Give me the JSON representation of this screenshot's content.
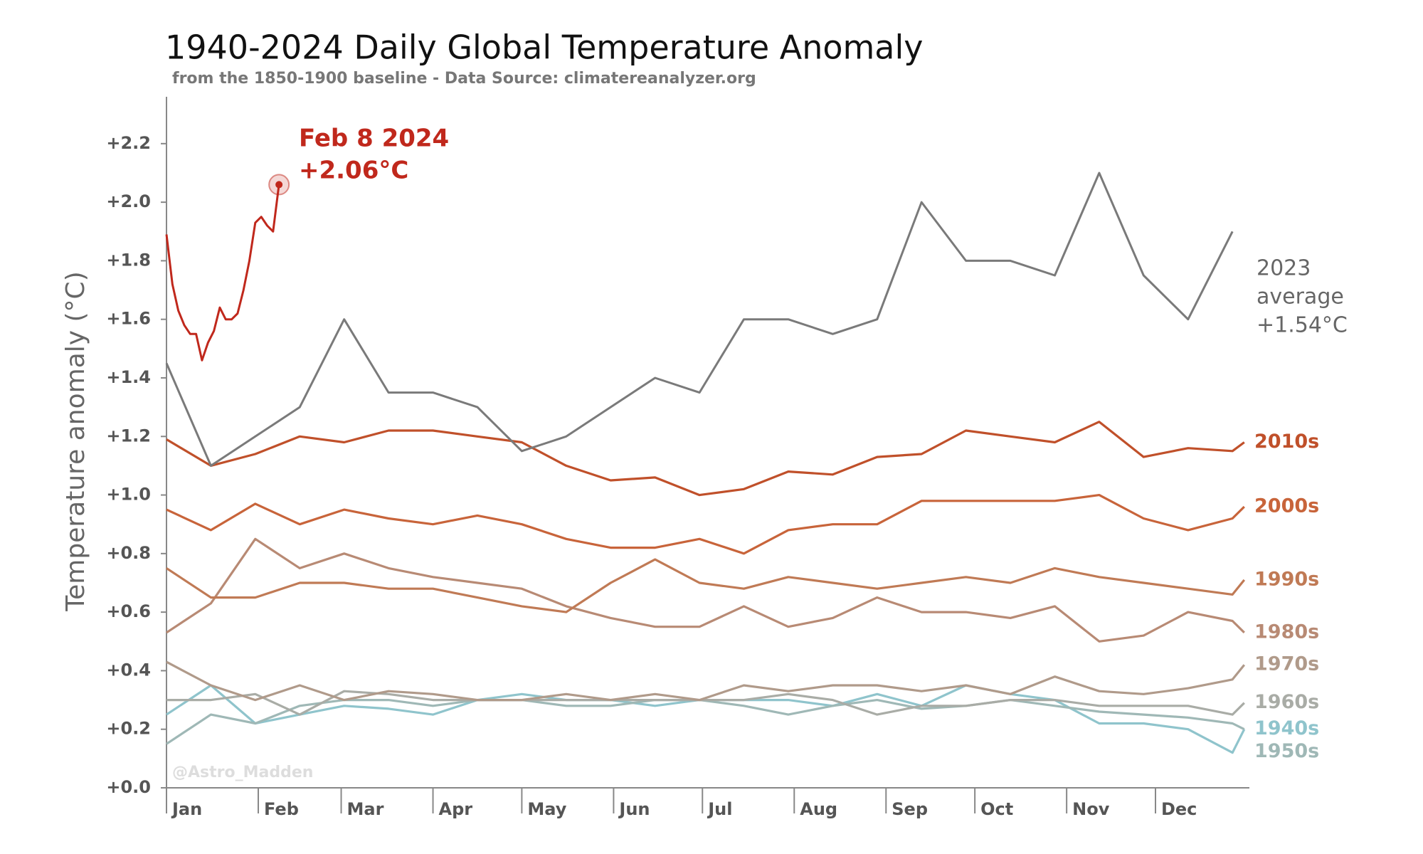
{
  "chart_data": {
    "type": "line",
    "title": "1940-2024 Daily Global Temperature Anomaly",
    "subtitle": "from the 1850-1900 baseline - Data Source: climatereanalyzer.org",
    "y_label": "Temperature anomaly (°C)",
    "watermark": "@Astro_Madden",
    "annotations": [
      "Feb 8 2024",
      "+2.06°C",
      "average",
      "+1.54°C"
    ],
    "xlim": [
      1,
      366
    ],
    "ylim": [
      0,
      2.36
    ],
    "xticks": [
      {
        "value": 1,
        "label": "Jan"
      },
      {
        "value": 32,
        "label": "Feb"
      },
      {
        "value": 60,
        "label": "Mar"
      },
      {
        "value": 91,
        "label": "Apr"
      },
      {
        "value": 121,
        "label": "May"
      },
      {
        "value": 152,
        "label": "Jun"
      },
      {
        "value": 182,
        "label": "Jul"
      },
      {
        "value": 213,
        "label": "Aug"
      },
      {
        "value": 244,
        "label": "Sep"
      },
      {
        "value": 274,
        "label": "Oct"
      },
      {
        "value": 305,
        "label": "Nov"
      },
      {
        "value": 335,
        "label": "Dec"
      }
    ],
    "yticks": [
      {
        "value": 0,
        "label": "+0.0"
      },
      {
        "value": 0.2,
        "label": "+0.2"
      },
      {
        "value": 0.4,
        "label": "+0.4"
      },
      {
        "value": 0.6,
        "label": "+0.6"
      },
      {
        "value": 0.8,
        "label": "+0.8"
      },
      {
        "value": 1.0,
        "label": "+1.0"
      },
      {
        "value": 1.2,
        "label": "+1.2"
      },
      {
        "value": 1.4,
        "label": "+1.4"
      },
      {
        "value": 1.6,
        "label": "+1.6"
      },
      {
        "value": 1.8,
        "label": "+1.8"
      },
      {
        "value": 2.0,
        "label": "+2.0"
      },
      {
        "value": 2.2,
        "label": "+2.2"
      }
    ],
    "x": [
      1,
      16,
      31,
      46,
      61,
      76,
      91,
      106,
      121,
      136,
      151,
      166,
      181,
      196,
      211,
      226,
      241,
      256,
      271,
      286,
      301,
      316,
      331,
      346,
      361,
      365
    ],
    "series": [
      {
        "color": "#c0281c",
        "highlight_last": true,
        "x": [
          1,
          3,
          5,
          7,
          9,
          11,
          13,
          15,
          17,
          19,
          21,
          23,
          25,
          27,
          29,
          31,
          33,
          35,
          37,
          39
        ],
        "values": [
          1.89,
          1.72,
          1.63,
          1.58,
          1.55,
          1.55,
          1.46,
          1.52,
          1.56,
          1.64,
          1.6,
          1.6,
          1.62,
          1.7,
          1.8,
          1.93,
          1.95,
          1.92,
          1.9,
          2.06
        ]
      },
      {
        "name": "2023",
        "color": "#7a7a7a",
        "values": [
          1.45,
          1.1,
          1.2,
          1.3,
          1.6,
          1.35,
          1.35,
          1.3,
          1.15,
          1.2,
          1.3,
          1.4,
          1.35,
          1.6,
          1.6,
          1.55,
          1.6,
          2.0,
          1.8,
          1.8,
          1.75,
          2.1,
          1.75,
          1.6,
          1.9,
          null
        ]
      },
      {
        "name": "2010s",
        "color": "#c0502a",
        "values": [
          1.19,
          1.1,
          1.14,
          1.2,
          1.18,
          1.22,
          1.22,
          1.2,
          1.18,
          1.1,
          1.05,
          1.06,
          1.0,
          1.02,
          1.08,
          1.07,
          1.13,
          1.14,
          1.22,
          1.2,
          1.18,
          1.25,
          1.13,
          1.16,
          1.15,
          1.18
        ]
      },
      {
        "name": "2000s",
        "color": "#c8643a",
        "values": [
          0.95,
          0.88,
          0.97,
          0.9,
          0.95,
          0.92,
          0.9,
          0.93,
          0.9,
          0.85,
          0.82,
          0.82,
          0.85,
          0.8,
          0.88,
          0.9,
          0.9,
          0.98,
          0.98,
          0.98,
          0.98,
          1.0,
          0.92,
          0.88,
          0.92,
          0.96
        ]
      },
      {
        "name": "1990s",
        "color": "#c07a55",
        "values": [
          0.75,
          0.65,
          0.65,
          0.7,
          0.7,
          0.68,
          0.68,
          0.65,
          0.62,
          0.6,
          0.7,
          0.78,
          0.7,
          0.68,
          0.72,
          0.7,
          0.68,
          0.7,
          0.72,
          0.7,
          0.75,
          0.72,
          0.7,
          0.68,
          0.66,
          0.71
        ]
      },
      {
        "name": "1980s",
        "color": "#b88a74",
        "values": [
          0.53,
          0.63,
          0.85,
          0.75,
          0.8,
          0.75,
          0.72,
          0.7,
          0.68,
          0.62,
          0.58,
          0.55,
          0.55,
          0.62,
          0.55,
          0.58,
          0.65,
          0.6,
          0.6,
          0.58,
          0.62,
          0.5,
          0.52,
          0.6,
          0.57,
          0.53
        ]
      },
      {
        "name": "1970s",
        "color": "#b09a8a",
        "values": [
          0.43,
          0.35,
          0.3,
          0.35,
          0.3,
          0.33,
          0.32,
          0.3,
          0.3,
          0.32,
          0.3,
          0.32,
          0.3,
          0.35,
          0.33,
          0.35,
          0.35,
          0.33,
          0.35,
          0.32,
          0.38,
          0.33,
          0.32,
          0.34,
          0.37,
          0.42
        ]
      },
      {
        "name": "1960s",
        "color": "#a9aca6",
        "values": [
          0.3,
          0.3,
          0.32,
          0.25,
          0.33,
          0.32,
          0.3,
          0.3,
          0.3,
          0.3,
          0.3,
          0.3,
          0.3,
          0.3,
          0.32,
          0.3,
          0.25,
          0.28,
          0.28,
          0.3,
          0.3,
          0.28,
          0.28,
          0.28,
          0.25,
          0.29
        ]
      },
      {
        "name": "1950s",
        "color": "#9fb8b6",
        "values": [
          0.15,
          0.25,
          0.22,
          0.28,
          0.3,
          0.3,
          0.28,
          0.3,
          0.3,
          0.28,
          0.28,
          0.3,
          0.3,
          0.28,
          0.25,
          0.28,
          0.3,
          0.27,
          0.28,
          0.3,
          0.28,
          0.26,
          0.25,
          0.24,
          0.22,
          0.2
        ]
      },
      {
        "name": "1940s",
        "color": "#8fc4cc",
        "values": [
          0.25,
          0.35,
          0.22,
          0.25,
          0.28,
          0.27,
          0.25,
          0.3,
          0.32,
          0.3,
          0.3,
          0.28,
          0.3,
          0.3,
          0.3,
          0.28,
          0.32,
          0.28,
          0.35,
          0.32,
          0.3,
          0.22,
          0.22,
          0.2,
          0.12,
          0.2
        ]
      }
    ]
  }
}
